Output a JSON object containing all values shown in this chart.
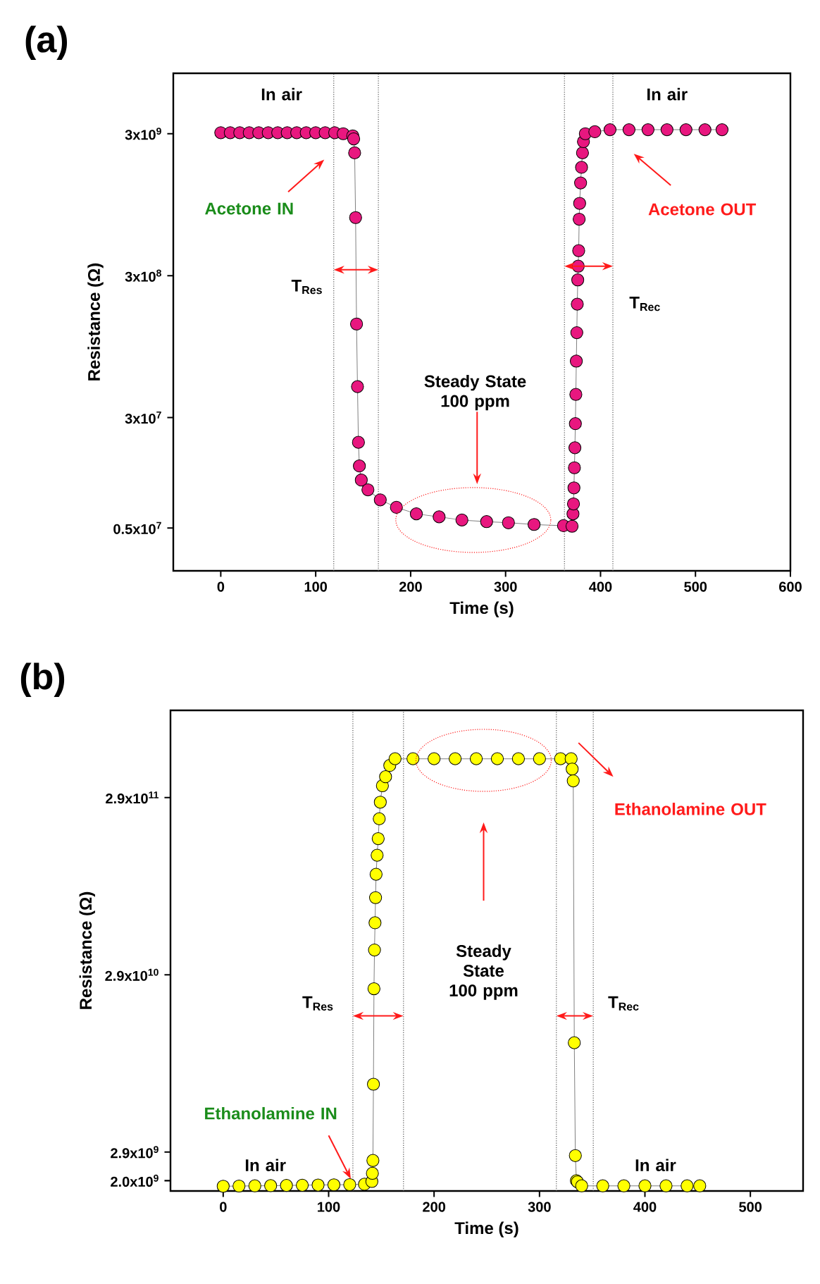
{
  "chart_data": [
    {
      "type": "line",
      "title": "(a)",
      "xlabel": "Time (s)",
      "ylabel": "Resistance (Ω)",
      "log": "y",
      "marker": "circle",
      "line_style": "solid",
      "xlim": [
        -50,
        600
      ],
      "xticks": [
        0,
        100,
        200,
        300,
        400,
        500,
        600
      ],
      "ylim": [
        2500000,
        8000000000
      ],
      "yticks": [
        {
          "value": 5000000,
          "label": "0.5x10$^{7}$"
        },
        {
          "value": 30000000,
          "label": "3x10$^{7}$"
        },
        {
          "value": 300000000,
          "label": "3x10$^{8}$"
        },
        {
          "value": 3000000000,
          "label": "3x10$^{9}$"
        }
      ],
      "series": [
        {
          "color": "#e8177f",
          "x": [
            0,
            10,
            20,
            30,
            40,
            50,
            60,
            70,
            80,
            90,
            100,
            110,
            120,
            129,
            139,
            140,
            141,
            142,
            143,
            144,
            145,
            146,
            148,
            155,
            168,
            185,
            206,
            230,
            254,
            280,
            303,
            330,
            361,
            370,
            371,
            371.5,
            372,
            372.5,
            373,
            373.5,
            374,
            374.5,
            375,
            375.5,
            376,
            376.5,
            377,
            377.5,
            378,
            379,
            380,
            381,
            382,
            384,
            394,
            410,
            430,
            450,
            470,
            490,
            510,
            528
          ],
          "values": [
            3050000000.0,
            3050000000.0,
            3050000000.0,
            3050000000.0,
            3050000000.0,
            3050000000.0,
            3050000000.0,
            3050000000.0,
            3050000000.0,
            3050000000.0,
            3050000000.0,
            3050000000.0,
            3050000000.0,
            3000000000.0,
            2900000000.0,
            2760000000.0,
            2200000000.0,
            770000000.0,
            137000000.0,
            49600000.0,
            20100000.0,
            13700000.0,
            10900000.0,
            9300000.0,
            7900000.0,
            7000000.0,
            6300000.0,
            6000000.0,
            5700000.0,
            5550000.0,
            5450000.0,
            5300000.0,
            5200000.0,
            5150000.0,
            6300000.0,
            7400000.0,
            9600000.0,
            13300000.0,
            18400000.0,
            27200000.0,
            43700000.0,
            75000000.0,
            119000000.0,
            189000000.0,
            280000000.0,
            350000000.0,
            450000000.0,
            750000000.0,
            970000000.0,
            1350000000.0,
            1740000000.0,
            2200000000.0,
            2640000000.0,
            3000000000.0,
            3100000000.0,
            3200000000.0,
            3200000000.0,
            3200000000.0,
            3200000000.0,
            3200000000.0,
            3200000000.0,
            3200000000.0
          ]
        }
      ],
      "ref_lines": [
        {
          "axis": "x",
          "value": 119,
          "color": "#555555",
          "line_style": "dotted"
        },
        {
          "axis": "x",
          "value": 166,
          "color": "#555555",
          "line_style": "dotted"
        },
        {
          "axis": "x",
          "value": 362,
          "color": "#555555",
          "line_style": "dotted"
        },
        {
          "axis": "x",
          "value": 413,
          "color": "#555555",
          "line_style": "dotted"
        }
      ],
      "annotations": [
        "In air",
        "In air",
        "Acetone IN",
        "Acetone OUT",
        "T$_{Res}$",
        "T$_{Rec}$",
        "Steady State 100 ppm"
      ]
    },
    {
      "type": "line",
      "title": "(b)",
      "xlabel": "Time (s)",
      "ylabel": "Resistance (Ω)",
      "log": "y",
      "marker": "circle",
      "line_style": "solid",
      "xlim": [
        -50,
        550
      ],
      "xticks": [
        0,
        100,
        200,
        300,
        400,
        500
      ],
      "ylim": [
        1750000000,
        900000000000
      ],
      "yticks": [
        {
          "value": 2000000000,
          "label": "2.0x10$^{9}$"
        },
        {
          "value": 2900000000,
          "label": "2.9x10$^{9}$"
        },
        {
          "value": 29000000000,
          "label": "2.9x10$^{10}$"
        },
        {
          "value": 290000000000,
          "label": "2.9x10$^{11}$"
        }
      ],
      "series": [
        {
          "color": "#ffff00",
          "x": [
            0,
            15,
            30,
            45,
            60,
            75,
            90,
            105,
            120,
            134,
            141,
            141.5,
            142,
            142.5,
            143,
            143.5,
            144,
            144.5,
            145,
            146,
            147,
            148,
            149,
            151,
            154,
            158,
            163,
            180,
            200,
            220,
            240,
            260,
            280,
            300,
            320,
            330,
            331,
            332,
            333,
            334,
            335,
            336,
            337,
            339,
            340,
            360,
            380,
            400,
            420,
            440,
            452
          ],
          "values": [
            1860000000.0,
            1865000000.0,
            1870000000.0,
            1875000000.0,
            1880000000.0,
            1885000000.0,
            1890000000.0,
            1895000000.0,
            1900000000.0,
            1910000000.0,
            1980000000.0,
            2200000000.0,
            2600000000.0,
            7000000000.0,
            24200000000.0,
            40000000000.0,
            57000000000.0,
            79000000000.0,
            107000000000.0,
            137000000000.0,
            170000000000.0,
            220000000000.0,
            273000000000.0,
            338000000000.0,
            380000000000.0,
            440000000000.0,
            480000000000.0,
            480000000000.0,
            480000000000.0,
            480000000000.0,
            480000000000.0,
            480000000000.0,
            480000000000.0,
            480000000000.0,
            480000000000.0,
            480000000000.0,
            420000000000.0,
            360000000000.0,
            12000000000.0,
            2770000000.0,
            2000000000.0,
            1970000000.0,
            null,
            null,
            1870000000.0,
            1870000000.0,
            1870000000.0,
            1870000000.0,
            1870000000.0,
            1870000000.0,
            1870000000.0
          ]
        }
      ],
      "ref_lines": [
        {
          "axis": "x",
          "value": 123,
          "color": "#555555",
          "line_style": "dotted"
        },
        {
          "axis": "x",
          "value": 171,
          "color": "#555555",
          "line_style": "dotted"
        },
        {
          "axis": "x",
          "value": 316,
          "color": "#555555",
          "line_style": "dotted"
        },
        {
          "axis": "x",
          "value": 351,
          "color": "#555555",
          "line_style": "dotted"
        }
      ],
      "annotations": [
        "In air",
        "In air",
        "Ethanolamine IN",
        "Ethanolamine OUT",
        "T$_{Res}$",
        "T$_{Rec}$",
        "Steady State 100 ppm"
      ]
    }
  ]
}
